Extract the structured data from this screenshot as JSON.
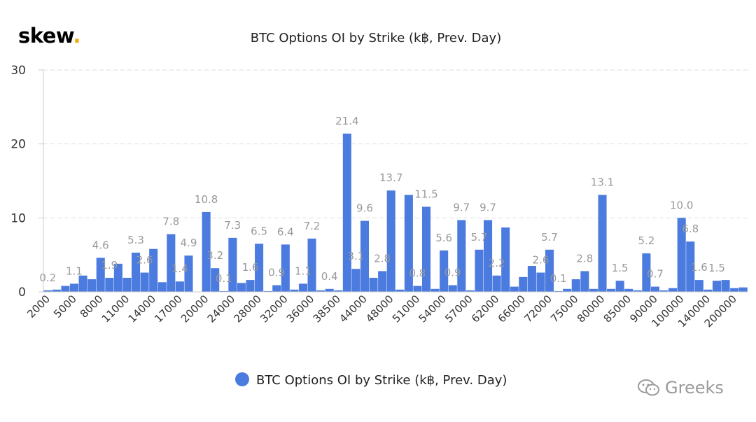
{
  "brand": {
    "name": "skew",
    "dot": ".",
    "dot_color": "#f2a900"
  },
  "watermark": {
    "text": "Greeks"
  },
  "chart_data": {
    "type": "bar",
    "title": "BTC Options OI by Strike (k฿, Prev. Day)",
    "xlabel": "",
    "ylabel": "",
    "ylim": [
      0,
      30
    ],
    "yticks": [
      0,
      10,
      20,
      30
    ],
    "grid": true,
    "legend": {
      "position": "bottom-center",
      "marker": "circle"
    },
    "series": [
      {
        "name": "BTC Options OI by Strike (k฿, Prev. Day)",
        "color": "#4b7bdf",
        "values": [
          0.2,
          0.3,
          0.8,
          1.1,
          2.2,
          1.7,
          4.6,
          1.9,
          3.8,
          1.9,
          5.3,
          2.6,
          5.8,
          1.3,
          7.8,
          1.4,
          4.9,
          0.0,
          10.8,
          3.2,
          0.1,
          7.3,
          1.2,
          1.6,
          6.5,
          0.1,
          0.9,
          6.4,
          0.3,
          1.1,
          7.2,
          0.2,
          0.4,
          0.2,
          21.4,
          3.1,
          9.6,
          1.9,
          2.8,
          13.7,
          0.3,
          13.1,
          0.8,
          11.5,
          0.4,
          5.6,
          0.9,
          9.7,
          0.2,
          5.7,
          9.7,
          2.2,
          8.7,
          0.7,
          2.0,
          3.5,
          2.6,
          5.7,
          0.1,
          0.4,
          1.7,
          2.8,
          0.4,
          13.1,
          0.4,
          1.5,
          0.4,
          0.2,
          5.2,
          0.7,
          0.2,
          0.5,
          10.0,
          6.8,
          1.6,
          0.3,
          1.5,
          1.6,
          0.5,
          0.6
        ]
      }
    ],
    "data_labels": [
      "0.2",
      "",
      "",
      "1.1",
      "",
      "",
      "4.6",
      "1.9",
      "",
      "",
      "5.3",
      "2.6",
      "",
      "",
      "7.8",
      "1.4",
      "4.9",
      "",
      "10.8",
      "3.2",
      "0.1",
      "7.3",
      "",
      "1.6",
      "6.5",
      "",
      "0.9",
      "6.4",
      "",
      "1.1",
      "7.2",
      "",
      "0.4",
      "",
      "21.4",
      "3.1",
      "9.6",
      "",
      "2.8",
      "13.7",
      "",
      "",
      "0.8",
      "11.5",
      "",
      "5.6",
      "0.9",
      "9.7",
      "",
      "5.7",
      "9.7",
      "2.2",
      "",
      "",
      "",
      "",
      "2.6",
      "5.7",
      "0.1",
      "",
      "",
      "2.8",
      "",
      "13.1",
      "",
      "1.5",
      "",
      "",
      "5.2",
      "0.7",
      "",
      "",
      "10.0",
      "6.8",
      "1.6",
      "",
      "1.5",
      "",
      "",
      ""
    ],
    "x_tick_labels": [
      "2000",
      "5000",
      "8000",
      "11000",
      "14000",
      "17000",
      "20000",
      "24000",
      "28000",
      "32000",
      "36000",
      "38500",
      "44000",
      "48000",
      "51000",
      "54000",
      "57000",
      "62000",
      "66000",
      "72000",
      "75000",
      "80000",
      "85000",
      "90000",
      "100000",
      "140000",
      "200000"
    ]
  }
}
